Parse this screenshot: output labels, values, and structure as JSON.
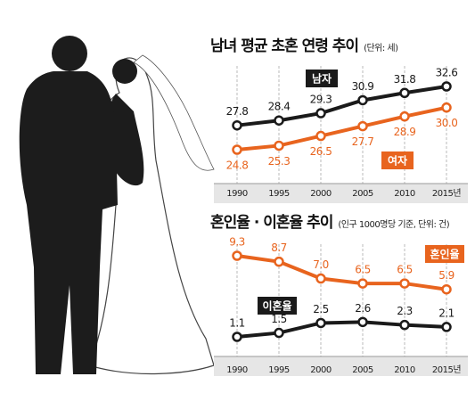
{
  "chart_data": [
    {
      "type": "line",
      "title": "남녀 평균 초혼 연령 추이",
      "subtitle": "(단위: 세)",
      "categories": [
        "1990",
        "1995",
        "2000",
        "2005",
        "2010",
        "2015년"
      ],
      "series": [
        {
          "name": "남자",
          "color": "#1a1a1a",
          "values": [
            27.8,
            28.4,
            29.3,
            30.9,
            31.8,
            32.6
          ],
          "value_labels": [
            "27.8",
            "28.4",
            "29.3",
            "30.9",
            "31.8",
            "32.6"
          ]
        },
        {
          "name": "여자",
          "color": "#e8641e",
          "values": [
            24.8,
            25.3,
            26.5,
            27.7,
            28.9,
            30.0
          ],
          "value_labels": [
            "24.8",
            "25.3",
            "26.5",
            "27.7",
            "28.9",
            "30.0"
          ]
        }
      ]
    },
    {
      "type": "line",
      "title": "혼인율 · 이혼율 추이",
      "subtitle": "(인구 1000명당 기준, 단위: 건)",
      "categories": [
        "1990",
        "1995",
        "2000",
        "2005",
        "2010",
        "2015년"
      ],
      "series": [
        {
          "name": "혼인율",
          "color": "#e8641e",
          "values": [
            9.3,
            8.7,
            7.0,
            6.5,
            6.5,
            5.9
          ],
          "value_labels": [
            "9.3",
            "8.7",
            "7.0",
            "6.5",
            "6.5",
            "5.9"
          ]
        },
        {
          "name": "이혼율",
          "color": "#1a1a1a",
          "values": [
            1.1,
            1.5,
            2.5,
            2.6,
            2.3,
            2.1
          ],
          "value_labels": [
            "1.1",
            "1.5",
            "2.5",
            "2.6",
            "2.3",
            "2.1"
          ]
        }
      ]
    }
  ]
}
